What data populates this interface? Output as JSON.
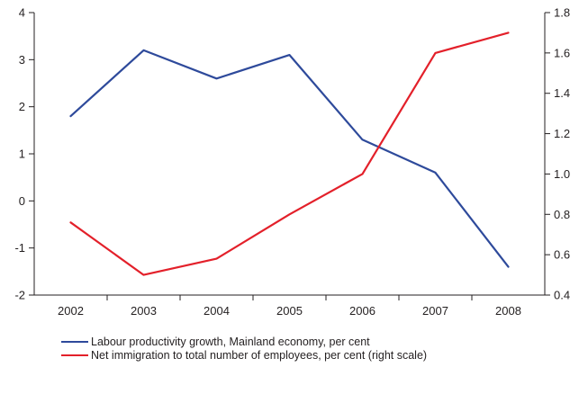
{
  "chart_data": {
    "type": "line",
    "x": [
      "2002",
      "2003",
      "2004",
      "2005",
      "2006",
      "2007",
      "2008"
    ],
    "left_axis": {
      "ylim": [
        -2,
        4
      ],
      "ticks": [
        "-2",
        "-1",
        "0",
        "1",
        "2",
        "3",
        "4"
      ]
    },
    "right_axis": {
      "ylim": [
        0.4,
        1.8
      ],
      "ticks": [
        "0.4",
        "0.6",
        "0.8",
        "1.0",
        "1.2",
        "1.4",
        "1.6",
        "1.8"
      ]
    },
    "series": [
      {
        "name": "Labour productivity growth, Mainland economy, per cent",
        "axis": "left",
        "color": "#2e4a9b",
        "values": [
          1.8,
          3.2,
          2.6,
          3.1,
          1.3,
          0.6,
          -1.4
        ]
      },
      {
        "name": "Net immigration to total number of employees, per cent (right scale)",
        "axis": "right",
        "color": "#e3202a",
        "values": [
          0.76,
          0.5,
          0.58,
          0.8,
          1.0,
          1.6,
          1.7
        ]
      }
    ],
    "grid": false,
    "legend_position": "bottom"
  }
}
